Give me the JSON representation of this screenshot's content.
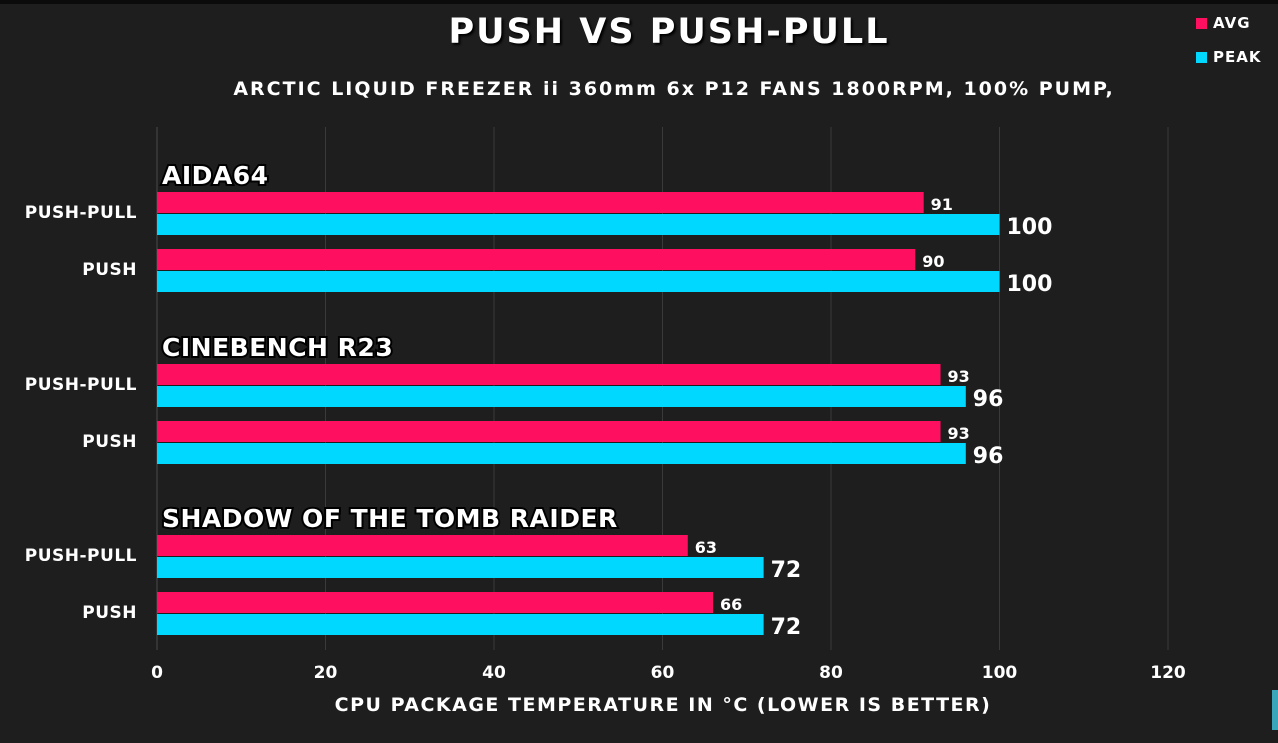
{
  "colors": {
    "avg": "#ff0f5f",
    "peak": "#00d8ff",
    "background": "#1e1e1e",
    "grid": "#3a3a3a",
    "text": "#ffffff"
  },
  "chart_data": {
    "type": "bar",
    "orientation": "horizontal",
    "title": "PUSH VS PUSH-PULL",
    "subtitle": "ARCTIC LIQUID FREEZER ii 360mm 6x P12 FANS 1800RPM, 100% PUMP,",
    "xlabel": "CPU PACKAGE TEMPERATURE IN °C (LOWER IS BETTER)",
    "ylabel": "",
    "xlim": [
      0,
      120
    ],
    "xticks": [
      "0",
      "20",
      "40",
      "60",
      "80",
      "100",
      "120"
    ],
    "grid": true,
    "legend_position": "top-right",
    "legend": [
      {
        "label": "AVG",
        "color": "#ff0f5f"
      },
      {
        "label": "PEAK",
        "color": "#00d8ff"
      }
    ],
    "groups": [
      {
        "name": "AIDA64",
        "rows": [
          {
            "label": "PUSH-PULL",
            "avg": 91,
            "peak": 100
          },
          {
            "label": "PUSH",
            "avg": 90,
            "peak": 100
          }
        ]
      },
      {
        "name": "CINEBENCH R23",
        "rows": [
          {
            "label": "PUSH-PULL",
            "avg": 93,
            "peak": 96
          },
          {
            "label": "PUSH",
            "avg": 93,
            "peak": 96
          }
        ]
      },
      {
        "name": "SHADOW OF THE TOMB RAIDER",
        "rows": [
          {
            "label": "PUSH-PULL",
            "avg": 63,
            "peak": 72
          },
          {
            "label": "PUSH",
            "avg": 66,
            "peak": 72
          }
        ]
      }
    ]
  }
}
